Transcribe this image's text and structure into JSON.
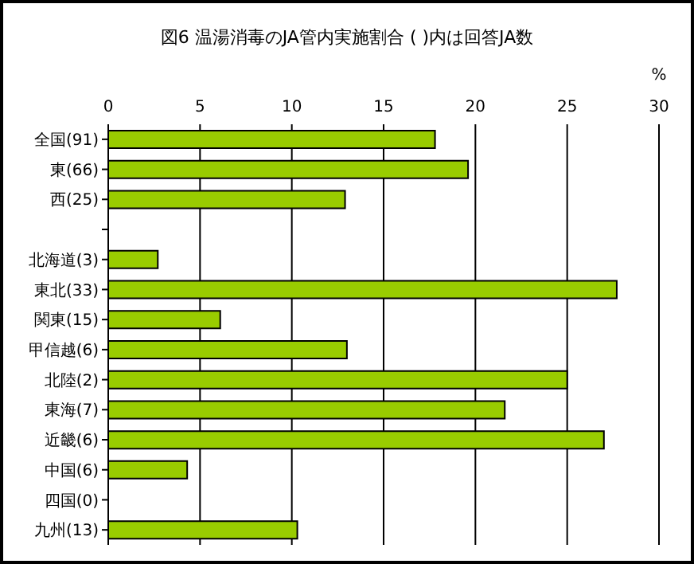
{
  "chart_data": {
    "type": "bar",
    "orientation": "horizontal",
    "title": "図6  温湯消毒のJA管内実施割合  ( )内は回答JA数",
    "xlabel": "%",
    "categories": [
      "全国(91)",
      "東(66)",
      "西(25)",
      null,
      "北海道(3)",
      "東北(33)",
      "関東(15)",
      "甲信越(6)",
      "北陸(2)",
      "東海(7)",
      "近畿(6)",
      "中国(6)",
      "四国(0)",
      "九州(13)"
    ],
    "values": [
      17.8,
      19.6,
      12.9,
      null,
      2.7,
      27.7,
      6.1,
      13.0,
      25.0,
      21.6,
      27.0,
      4.3,
      0,
      10.3
    ],
    "color": "#99cc00",
    "xlim": [
      0,
      30
    ],
    "xticks": [
      0,
      5,
      10,
      15,
      20,
      25,
      30
    ],
    "grid": "x"
  }
}
